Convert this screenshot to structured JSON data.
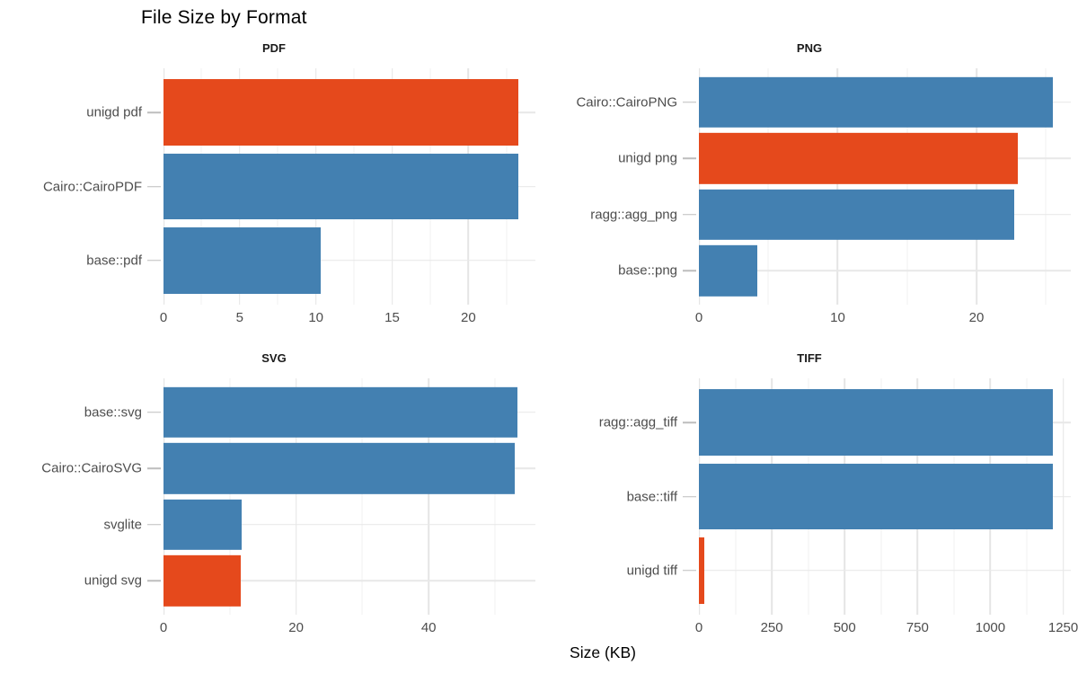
{
  "colors": {
    "bar_blue": "#4380B1",
    "bar_orange": "#E5491C",
    "grid_major": "#E5E5E5",
    "grid_minor": "#F0F0F0",
    "axis_tick_mark": "#BDBDBD",
    "axis_text": "#4D4D4D",
    "title_text": "#000000"
  },
  "chart_data": {
    "type": "bar",
    "orientation": "horizontal",
    "title": "File Size by Format",
    "xlabel": "Size (KB)",
    "grid": "on",
    "legend": "none",
    "facets": [
      {
        "facet": "PDF",
        "categories": [
          "unigd pdf",
          "Cairo::CairoPDF",
          "base::pdf"
        ],
        "values": [
          23.3,
          23.3,
          10.3
        ],
        "bar_colors": [
          "orange",
          "blue",
          "blue"
        ],
        "xlim": [
          0,
          24.4
        ],
        "xticks": [
          0,
          5,
          10,
          15,
          20
        ]
      },
      {
        "facet": "PNG",
        "categories": [
          "Cairo::CairoPNG",
          "unigd png",
          "ragg::agg_png",
          "base::png"
        ],
        "values": [
          25.5,
          23.0,
          22.7,
          4.2
        ],
        "bar_colors": [
          "blue",
          "orange",
          "blue",
          "blue"
        ],
        "xlim": [
          0,
          26.8
        ],
        "xticks": [
          0,
          10,
          20
        ]
      },
      {
        "facet": "SVG",
        "categories": [
          "base::svg",
          "Cairo::CairoSVG",
          "svglite",
          "unigd svg"
        ],
        "values": [
          53.4,
          53.0,
          11.8,
          11.6
        ],
        "bar_colors": [
          "blue",
          "blue",
          "blue",
          "orange"
        ],
        "xlim": [
          0,
          56.1
        ],
        "xticks": [
          0,
          20,
          40
        ]
      },
      {
        "facet": "TIFF",
        "categories": [
          "ragg::agg_tiff",
          "base::tiff",
          "unigd tiff"
        ],
        "values": [
          1214,
          1213,
          18
        ],
        "bar_colors": [
          "blue",
          "blue",
          "orange"
        ],
        "xlim": [
          0,
          1276
        ],
        "xticks": [
          0,
          250,
          500,
          750,
          1000,
          1250
        ]
      }
    ]
  }
}
